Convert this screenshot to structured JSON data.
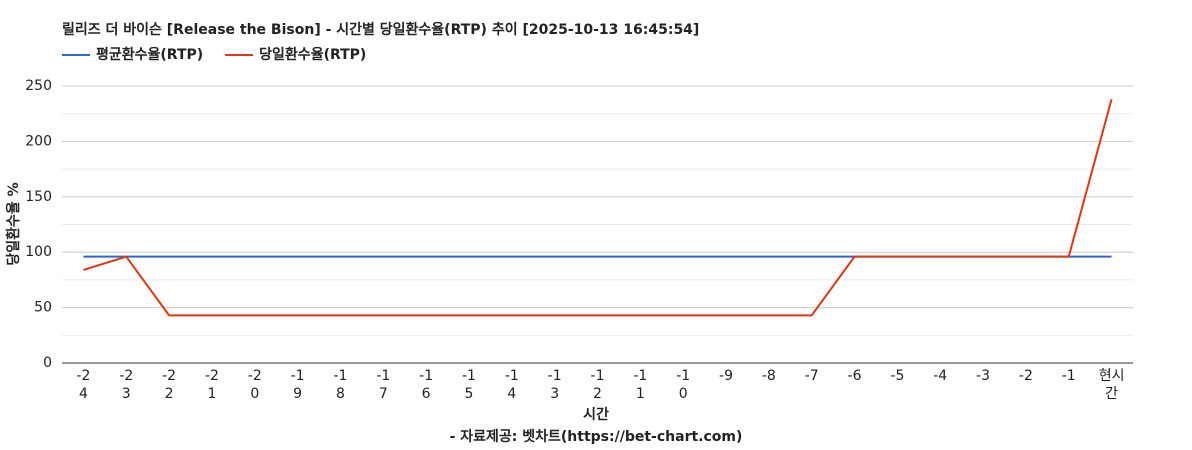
{
  "chart_data": {
    "type": "line",
    "title": "릴리즈 더 바이슨 [Release the Bison] - 시간별 당일환수율(RTP) 추이 [2025-10-13 16:45:54]",
    "x_label": "시간",
    "y_label": "당일환수율 %",
    "footnote": "- 자료제공: 벳차트(https://bet-chart.com)",
    "categories": [
      "-24",
      "-23",
      "-22",
      "-21",
      "-20",
      "-19",
      "-18",
      "-17",
      "-16",
      "-15",
      "-14",
      "-13",
      "-12",
      "-11",
      "-10",
      "-9",
      "-8",
      "-7",
      "-6",
      "-5",
      "-4",
      "-3",
      "-2",
      "-1",
      "현시간"
    ],
    "series": [
      {
        "name": "평균환수율(RTP)",
        "color": "#3366cc",
        "values": [
          96,
          96,
          96,
          96,
          96,
          96,
          96,
          96,
          96,
          96,
          96,
          96,
          96,
          96,
          96,
          96,
          96,
          96,
          96,
          96,
          96,
          96,
          96,
          96,
          96
        ]
      },
      {
        "name": "당일환수율(RTP)",
        "color": "#dc3912",
        "values": [
          84,
          96,
          43,
          43,
          43,
          43,
          43,
          43,
          43,
          43,
          43,
          43,
          43,
          43,
          43,
          43,
          43,
          43,
          96,
          96,
          96,
          96,
          96,
          96,
          238
        ]
      }
    ],
    "ylim": [
      0,
      250
    ],
    "yticks": [
      0,
      50,
      100,
      150,
      200,
      250
    ],
    "minor_yticks": [
      25,
      75,
      125,
      175,
      225
    ],
    "grid": true,
    "legend": "top-left"
  }
}
